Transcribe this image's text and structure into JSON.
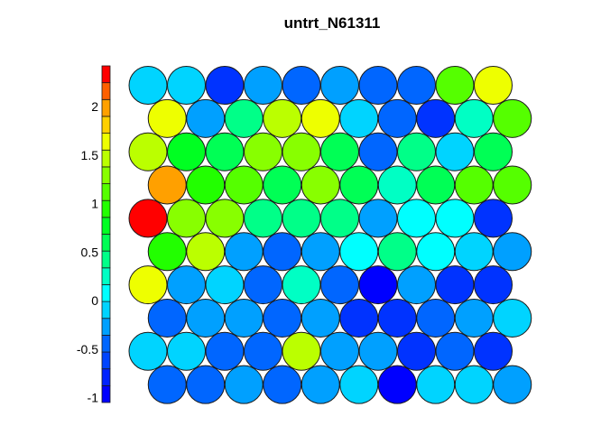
{
  "chart_data": {
    "type": "heatmap",
    "subtype": "som-hexagonal-property-map",
    "title": "untrt_N61311",
    "xlabel": "",
    "ylabel": "",
    "grid": false,
    "legend_position": "left",
    "colorbar": {
      "range": [
        -1.05,
        2.42
      ],
      "ticks": [
        -1,
        -0.5,
        0,
        0.5,
        1,
        1.5,
        2
      ],
      "tick_labels": [
        "-1",
        "-0.5",
        "0",
        "0.5",
        "1",
        "1.5",
        "2"
      ],
      "n_levels": 20,
      "colors": [
        "#0000FF",
        "#0022FF",
        "#0044FF",
        "#0066FF",
        "#00A0FF",
        "#00D4FF",
        "#00FFFF",
        "#00FFC4",
        "#00FF88",
        "#00FF55",
        "#00FF22",
        "#22FF00",
        "#55FF00",
        "#88FF00",
        "#BBFF00",
        "#EEFF00",
        "#FFD000",
        "#FFA000",
        "#FF6000",
        "#FF0000"
      ]
    },
    "rows": 10,
    "cols": 10,
    "row_colors": [
      [
        "#00D4FF",
        "#00D4FF",
        "#0033FF",
        "#00A0FF",
        "#0066FF",
        "#00A0FF",
        "#0066FF",
        "#0066FF",
        "#55FF00",
        "#EEFF00"
      ],
      [
        "#EEFF00",
        "#00A0FF",
        "#00FF88",
        "#BBFF00",
        "#EEFF00",
        "#00D4FF",
        "#0066FF",
        "#0033FF",
        "#00FFC4",
        "#55FF00"
      ],
      [
        "#BBFF00",
        "#00FF22",
        "#00FF55",
        "#88FF00",
        "#88FF00",
        "#00FF55",
        "#0066FF",
        "#00FF88",
        "#00D4FF",
        "#00FF55"
      ],
      [
        "#FFA000",
        "#22FF00",
        "#55FF00",
        "#00FF55",
        "#88FF00",
        "#00FF55",
        "#00FFC4",
        "#00FF55",
        "#55FF00",
        "#55FF00"
      ],
      [
        "#FF0000",
        "#88FF00",
        "#88FF00",
        "#00FF88",
        "#00FF88",
        "#00FF88",
        "#00A0FF",
        "#00FFFF",
        "#00FFFF",
        "#0033FF"
      ],
      [
        "#22FF00",
        "#BBFF00",
        "#00A0FF",
        "#0066FF",
        "#00A0FF",
        "#00FFFF",
        "#00FF88",
        "#00FFFF",
        "#00D4FF",
        "#00A0FF"
      ],
      [
        "#EEFF00",
        "#00A0FF",
        "#00D4FF",
        "#0066FF",
        "#00FFC4",
        "#0066FF",
        "#0000FF",
        "#00A0FF",
        "#0033FF",
        "#0033FF"
      ],
      [
        "#0066FF",
        "#00A0FF",
        "#00A0FF",
        "#0066FF",
        "#00A0FF",
        "#0033FF",
        "#0033FF",
        "#0066FF",
        "#00A0FF",
        "#00D4FF"
      ],
      [
        "#00D4FF",
        "#00D4FF",
        "#0066FF",
        "#0066FF",
        "#BBFF00",
        "#00A0FF",
        "#00A0FF",
        "#0033FF",
        "#0066FF",
        "#0033FF"
      ],
      [
        "#0066FF",
        "#0066FF",
        "#00A0FF",
        "#0066FF",
        "#00A0FF",
        "#00D4FF",
        "#0000FF",
        "#00D4FF",
        "#00D4FF",
        "#00A0FF"
      ]
    ],
    "values": [
      [
        -0.1,
        -0.1,
        -0.62,
        -0.27,
        -0.44,
        -0.27,
        -0.44,
        -0.44,
        1.12,
        1.64
      ],
      [
        1.64,
        -0.27,
        0.42,
        1.46,
        1.64,
        -0.1,
        -0.44,
        -0.62,
        0.25,
        1.12
      ],
      [
        1.46,
        0.77,
        0.6,
        1.29,
        1.29,
        0.6,
        -0.44,
        0.42,
        -0.1,
        0.6
      ],
      [
        1.98,
        0.94,
        1.12,
        0.6,
        1.29,
        0.6,
        0.25,
        0.6,
        1.12,
        1.12
      ],
      [
        2.33,
        1.29,
        1.29,
        0.42,
        0.42,
        0.42,
        -0.27,
        0.08,
        0.08,
        -0.62
      ],
      [
        0.94,
        1.46,
        -0.27,
        -0.44,
        -0.27,
        0.08,
        0.42,
        0.08,
        -0.1,
        -0.27
      ],
      [
        1.64,
        -0.27,
        -0.1,
        -0.44,
        0.25,
        -0.44,
        -0.96,
        -0.27,
        -0.62,
        -0.62
      ],
      [
        -0.44,
        -0.27,
        -0.27,
        -0.44,
        -0.27,
        -0.62,
        -0.62,
        -0.44,
        -0.27,
        -0.1
      ],
      [
        -0.1,
        -0.1,
        -0.44,
        -0.44,
        1.46,
        -0.27,
        -0.27,
        -0.62,
        -0.44,
        -0.62
      ],
      [
        -0.44,
        -0.44,
        -0.27,
        -0.44,
        -0.27,
        -0.1,
        -0.96,
        -0.1,
        -0.1,
        -0.27
      ]
    ]
  }
}
